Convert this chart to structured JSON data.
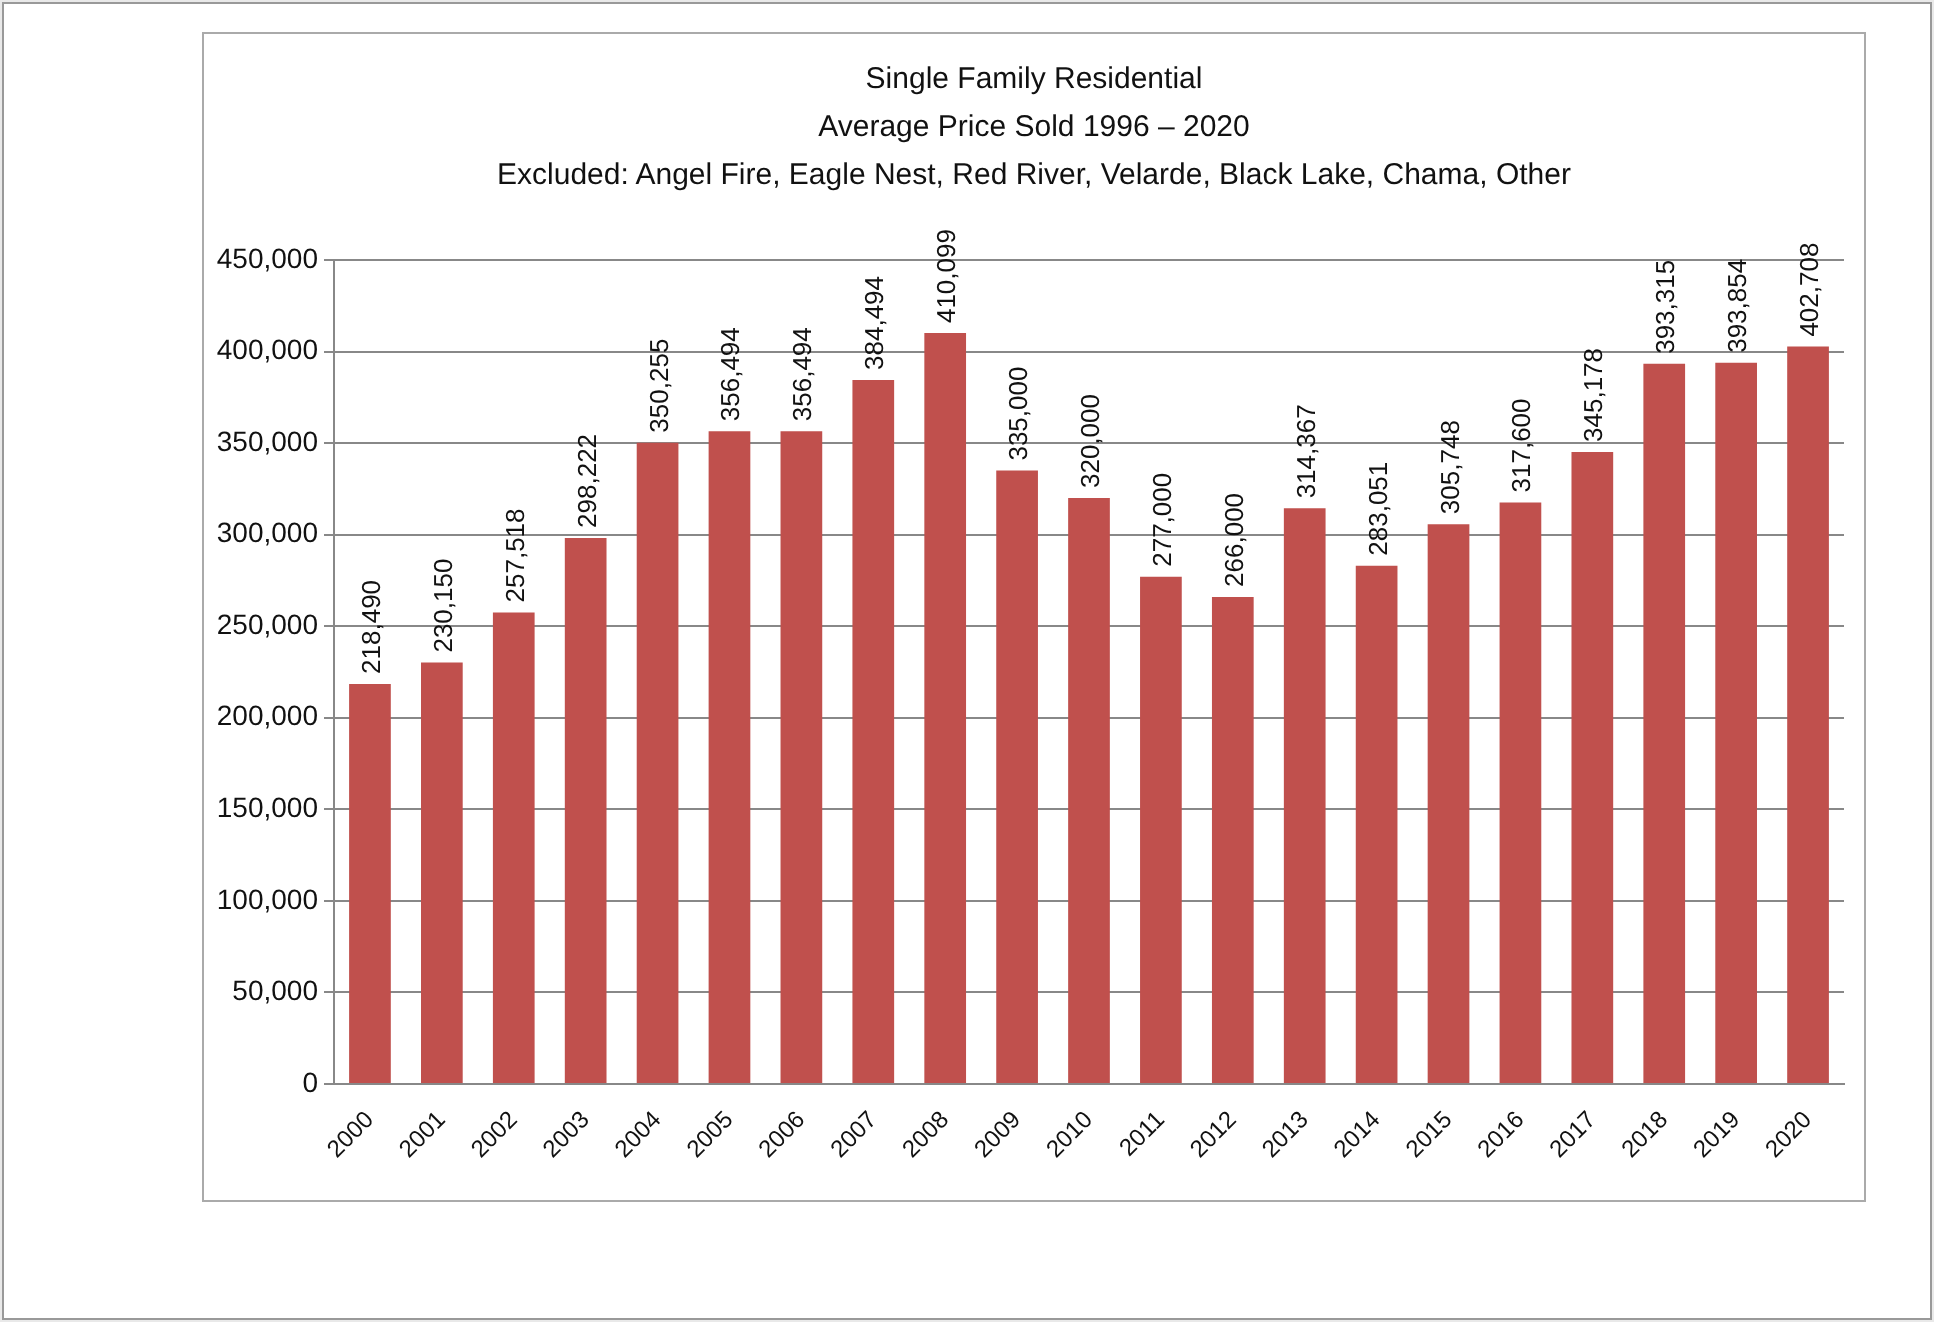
{
  "chart_data": {
    "type": "bar",
    "title": "Single Family Residential",
    "subtitle": "Average Price Sold  1996 – 2020",
    "annotations": [
      "Excluded: Angel Fire, Eagle Nest, Red River, Velarde, Black Lake, Chama, Other"
    ],
    "categories": [
      "2000",
      "2001",
      "2002",
      "2003",
      "2004",
      "2005",
      "2006",
      "2007",
      "2008",
      "2009",
      "2010",
      "2011",
      "2012",
      "2013",
      "2014",
      "2015",
      "2016",
      "2017",
      "2018",
      "2019",
      "2020"
    ],
    "values": [
      218490,
      230150,
      257518,
      298222,
      350255,
      356494,
      356494,
      384494,
      410099,
      335000,
      320000,
      277000,
      266000,
      314367,
      283051,
      305748,
      317600,
      345178,
      393315,
      393854,
      402708
    ],
    "value_labels": [
      "218,490",
      "230,150",
      "257,518",
      "298,222",
      "350,255",
      "356,494",
      "356,494",
      "384,494",
      "410,099",
      "335,000",
      "320,000",
      "277,000",
      "266,000",
      "314,367",
      "283,051",
      "305,748",
      "317,600",
      "345,178",
      "393,315",
      "393,854",
      "402,708"
    ],
    "color": "#c0504d",
    "grid": "y",
    "ylim": [
      0,
      450000
    ],
    "yticks": [
      {
        "value": 0,
        "label": "0"
      },
      {
        "value": 50000,
        "label": "50,000"
      },
      {
        "value": 100000,
        "label": "100,000"
      },
      {
        "value": 150000,
        "label": "150,000"
      },
      {
        "value": 200000,
        "label": "200,000"
      },
      {
        "value": 250000,
        "label": "250,000"
      },
      {
        "value": 300000,
        "label": "300,000"
      },
      {
        "value": 350000,
        "label": "350,000"
      },
      {
        "value": 400000,
        "label": "400,000"
      },
      {
        "value": 450000,
        "label": "450,000"
      }
    ]
  }
}
